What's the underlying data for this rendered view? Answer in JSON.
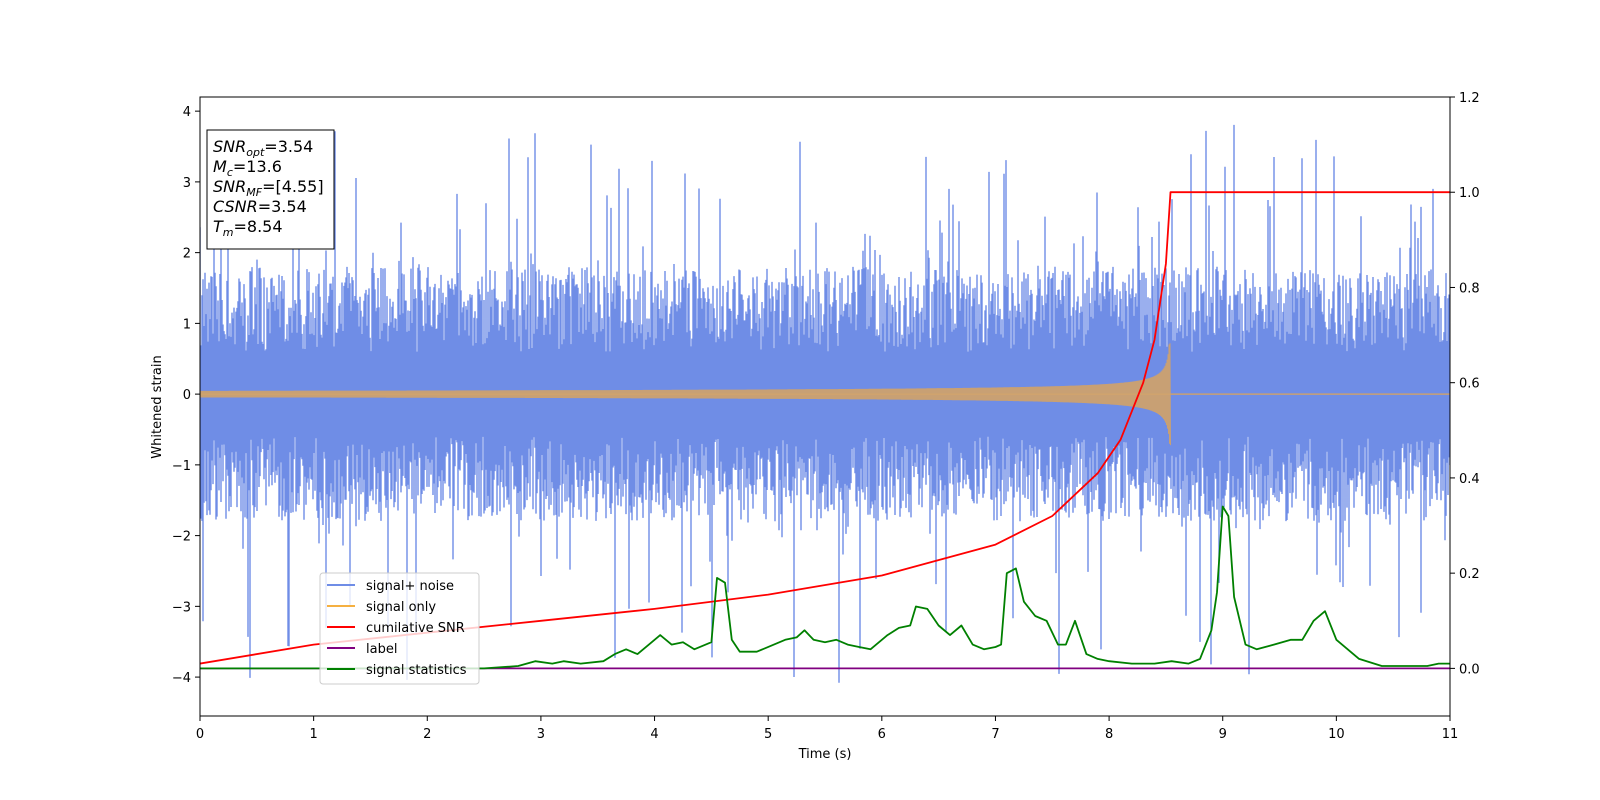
{
  "chart_data": {
    "type": "line",
    "title": "",
    "xlabel": "Time (s)",
    "ylabel": "Whitened strain",
    "xlim": [
      0,
      11
    ],
    "ylim_left": [
      -4.55,
      4.2
    ],
    "ylim_right": [
      -0.1,
      1.2
    ],
    "x_ticks": [
      0,
      1,
      2,
      3,
      4,
      5,
      6,
      7,
      8,
      9,
      10,
      11
    ],
    "y_left_ticks": [
      -4,
      -3,
      -2,
      -1,
      0,
      1,
      2,
      3,
      4
    ],
    "y_right_ticks": [
      0.0,
      0.2,
      0.4,
      0.6,
      0.8,
      1.0,
      1.2
    ],
    "grid": false,
    "legend_position": "lower-left",
    "info_box": {
      "lines": [
        {
          "main": "SNR",
          "sub": "opt",
          "value": "=3.54"
        },
        {
          "main": "M",
          "sub": "c",
          "value": "=13.6"
        },
        {
          "main": "SNR",
          "sub": "MF",
          "value": "=[4.55]"
        },
        {
          "main": "CSNR",
          "sub": "",
          "value": "=3.54"
        },
        {
          "main": "T",
          "sub": "m",
          "value": "=8.54"
        }
      ]
    },
    "series": [
      {
        "name": "signal+ noise",
        "color": "#6f8de6",
        "axis": "left",
        "kind": "noise",
        "x_range": [
          0,
          11
        ],
        "typical_range": [
          -2.2,
          2.2
        ],
        "extremes": [
          -4.15,
          3.82
        ]
      },
      {
        "name": "signal only",
        "color": "#f5b041",
        "axis": "left",
        "kind": "chirp",
        "x_range": [
          0,
          8.54
        ],
        "merger_time": 8.54,
        "peak_amplitude": 0.72
      },
      {
        "name": "cumilative SNR",
        "color": "#ff0000",
        "axis": "right",
        "x": [
          0,
          1,
          2,
          3,
          4,
          5,
          6,
          7,
          7.5,
          7.9,
          8.1,
          8.3,
          8.4,
          8.5,
          8.54,
          11
        ],
        "y": [
          0.01,
          0.05,
          0.075,
          0.1,
          0.125,
          0.155,
          0.195,
          0.26,
          0.32,
          0.41,
          0.48,
          0.6,
          0.69,
          0.85,
          1.0,
          1.0
        ]
      },
      {
        "name": "label",
        "color": "#800080",
        "axis": "right",
        "x": [
          0,
          11
        ],
        "y": [
          0.0,
          0.0
        ]
      },
      {
        "name": "signal statistics",
        "color": "#008000",
        "axis": "right",
        "x": [
          0,
          1,
          2,
          2.5,
          2.8,
          2.95,
          3.1,
          3.2,
          3.35,
          3.55,
          3.65,
          3.75,
          3.85,
          3.95,
          4.05,
          4.15,
          4.25,
          4.35,
          4.45,
          4.5,
          4.55,
          4.62,
          4.68,
          4.75,
          4.9,
          5.05,
          5.15,
          5.25,
          5.32,
          5.4,
          5.5,
          5.6,
          5.7,
          5.8,
          5.9,
          6.05,
          6.15,
          6.25,
          6.3,
          6.4,
          6.5,
          6.6,
          6.7,
          6.8,
          6.9,
          7.0,
          7.05,
          7.1,
          7.18,
          7.25,
          7.35,
          7.45,
          7.55,
          7.62,
          7.7,
          7.8,
          7.9,
          8.0,
          8.2,
          8.4,
          8.55,
          8.7,
          8.8,
          8.9,
          8.95,
          9.0,
          9.05,
          9.1,
          9.2,
          9.3,
          9.45,
          9.6,
          9.7,
          9.8,
          9.9,
          10.0,
          10.2,
          10.4,
          10.6,
          10.8,
          10.9,
          11.0
        ],
        "y": [
          0.0,
          0.0,
          0.0,
          0.0,
          0.005,
          0.015,
          0.01,
          0.015,
          0.01,
          0.015,
          0.03,
          0.04,
          0.03,
          0.05,
          0.07,
          0.05,
          0.055,
          0.04,
          0.05,
          0.055,
          0.19,
          0.18,
          0.06,
          0.035,
          0.035,
          0.05,
          0.06,
          0.065,
          0.08,
          0.06,
          0.055,
          0.06,
          0.05,
          0.045,
          0.04,
          0.07,
          0.085,
          0.09,
          0.13,
          0.125,
          0.09,
          0.07,
          0.09,
          0.05,
          0.04,
          0.045,
          0.05,
          0.2,
          0.21,
          0.14,
          0.11,
          0.1,
          0.05,
          0.05,
          0.1,
          0.03,
          0.02,
          0.015,
          0.01,
          0.01,
          0.015,
          0.01,
          0.02,
          0.08,
          0.16,
          0.34,
          0.32,
          0.15,
          0.05,
          0.04,
          0.05,
          0.06,
          0.06,
          0.1,
          0.12,
          0.06,
          0.02,
          0.005,
          0.005,
          0.005,
          0.01,
          0.01
        ]
      }
    ]
  }
}
